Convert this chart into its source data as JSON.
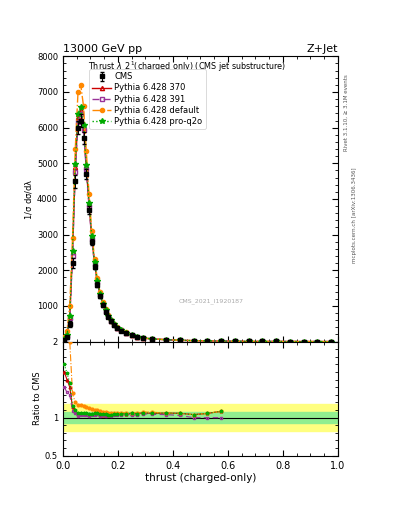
{
  "title_top": "13000 GeV pp",
  "title_top_right": "Z+Jet",
  "plot_title": "Thrust $\\lambda$_2$^1$(charged only) (CMS jet substructure)",
  "right_label_top": "Rivet 3.1.10, ≥ 3.1M events",
  "right_label_bottom": "mcplots.cern.ch [arXiv:1306.3436]",
  "watermark": "CMS_2021_I1920187",
  "xlabel": "thrust (charged-only)",
  "ratio_ylabel": "Ratio to CMS",
  "xlim": [
    0.0,
    1.0
  ],
  "ylim_main": [
    0,
    8000
  ],
  "ylim_ratio": [
    0.5,
    2.0
  ],
  "thrust_bins": [
    0.0,
    0.01,
    0.02,
    0.03,
    0.04,
    0.05,
    0.06,
    0.07,
    0.08,
    0.09,
    0.1,
    0.11,
    0.12,
    0.13,
    0.14,
    0.15,
    0.16,
    0.17,
    0.18,
    0.19,
    0.2,
    0.22,
    0.24,
    0.26,
    0.28,
    0.3,
    0.35,
    0.4,
    0.45,
    0.5,
    0.55,
    0.6,
    0.65,
    0.7,
    0.75,
    0.8,
    0.85,
    0.9,
    0.95,
    1.0
  ],
  "cms_values": [
    50,
    120,
    500,
    2200,
    4500,
    6000,
    6200,
    5700,
    4700,
    3700,
    2800,
    2100,
    1600,
    1280,
    1020,
    840,
    690,
    570,
    460,
    375,
    310,
    240,
    175,
    130,
    95,
    70,
    50,
    35,
    25,
    18,
    12,
    8,
    6,
    4,
    3,
    2,
    1,
    1,
    0
  ],
  "cms_errors": [
    30,
    50,
    80,
    130,
    180,
    190,
    190,
    170,
    140,
    110,
    90,
    75,
    65,
    55,
    48,
    42,
    38,
    33,
    28,
    23,
    19,
    15,
    13,
    10,
    8,
    6,
    4,
    3,
    2,
    1,
    1,
    1,
    1,
    0,
    0,
    0,
    0,
    0,
    0
  ],
  "py370_values": [
    80,
    180,
    700,
    2500,
    4900,
    6300,
    6500,
    6000,
    4900,
    3850,
    2920,
    2200,
    1690,
    1330,
    1060,
    870,
    715,
    590,
    480,
    393,
    325,
    252,
    184,
    137,
    101,
    74,
    53,
    37,
    26,
    19,
    13,
    9,
    6,
    4,
    3,
    2,
    1,
    1,
    0
  ],
  "py391_values": [
    70,
    160,
    650,
    2400,
    4750,
    6150,
    6380,
    5920,
    4840,
    3800,
    2880,
    2170,
    1670,
    1315,
    1050,
    862,
    710,
    585,
    476,
    390,
    322,
    250,
    182,
    135,
    100,
    73,
    52,
    36,
    25,
    18,
    12,
    8,
    6,
    4,
    3,
    2,
    1,
    1,
    0
  ],
  "pydef_values": [
    120,
    300,
    1000,
    2900,
    5400,
    7000,
    7200,
    6600,
    5350,
    4150,
    3100,
    2320,
    1770,
    1390,
    1100,
    900,
    735,
    605,
    490,
    400,
    330,
    255,
    186,
    138,
    102,
    75,
    53,
    37,
    26,
    19,
    13,
    9,
    6,
    4,
    3,
    2,
    1,
    1,
    0
  ],
  "pyq2o_values": [
    85,
    190,
    730,
    2550,
    4980,
    6380,
    6580,
    6080,
    4960,
    3900,
    2950,
    2220,
    1700,
    1340,
    1065,
    875,
    718,
    592,
    482,
    394,
    326,
    253,
    185,
    137,
    101,
    74,
    53,
    37,
    26,
    19,
    13,
    9,
    6,
    4,
    3,
    2,
    1,
    1,
    0
  ],
  "cms_color": "#000000",
  "py370_color": "#cc0000",
  "py391_color": "#993399",
  "pydef_color": "#ff8800",
  "pyq2o_color": "#00aa00",
  "ratio_green_lo": 0.93,
  "ratio_green_hi": 1.07,
  "ratio_yellow_lo": 0.82,
  "ratio_yellow_hi": 1.18,
  "ratio_green_color": "#90ee90",
  "ratio_yellow_color": "#ffff80"
}
